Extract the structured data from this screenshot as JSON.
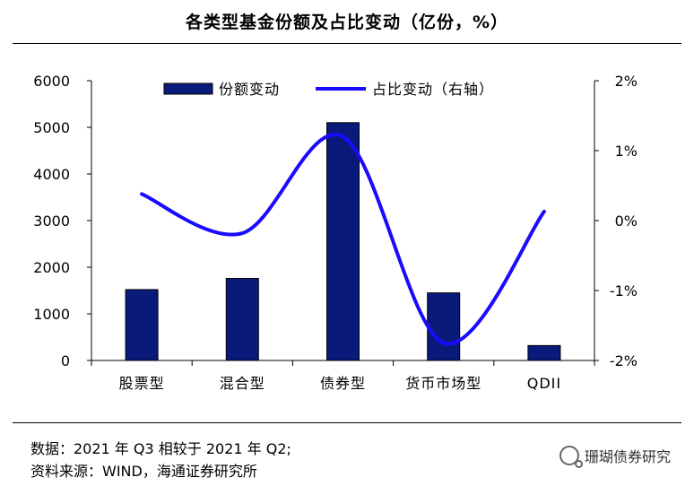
{
  "title": "各类型基金份额及占比变动（亿份，%）",
  "chart_data": {
    "type": "bar",
    "categories": [
      "股票型",
      "混合型",
      "债券型",
      "货币市场型",
      "QDII"
    ],
    "series": [
      {
        "name": "份额变动",
        "kind": "bar",
        "axis": "left",
        "color": "#0a1a7a",
        "values": [
          1520,
          1760,
          5100,
          1450,
          320
        ]
      },
      {
        "name": "占比变动（右轴）",
        "kind": "line",
        "axis": "right",
        "color": "#1a0aff",
        "values": [
          0.38,
          -0.18,
          1.2,
          -1.75,
          0.13
        ]
      }
    ],
    "left_axis": {
      "min": 0,
      "max": 6000,
      "ticks": [
        "0",
        "1000",
        "2000",
        "3000",
        "4000",
        "5000",
        "6000"
      ]
    },
    "right_axis": {
      "min": -2,
      "max": 2,
      "ticks": [
        "-2%",
        "-1%",
        "0%",
        "1%",
        "2%"
      ]
    },
    "legend_position": "top-center",
    "grid": false
  },
  "footer": {
    "note": "数据：2021 年 Q3 相较于 2021 年 Q2;",
    "source": "资料来源：WIND，海通证券研究所"
  },
  "watermark": {
    "text": "珊瑚债券研究",
    "icon": "wechat-icon"
  }
}
